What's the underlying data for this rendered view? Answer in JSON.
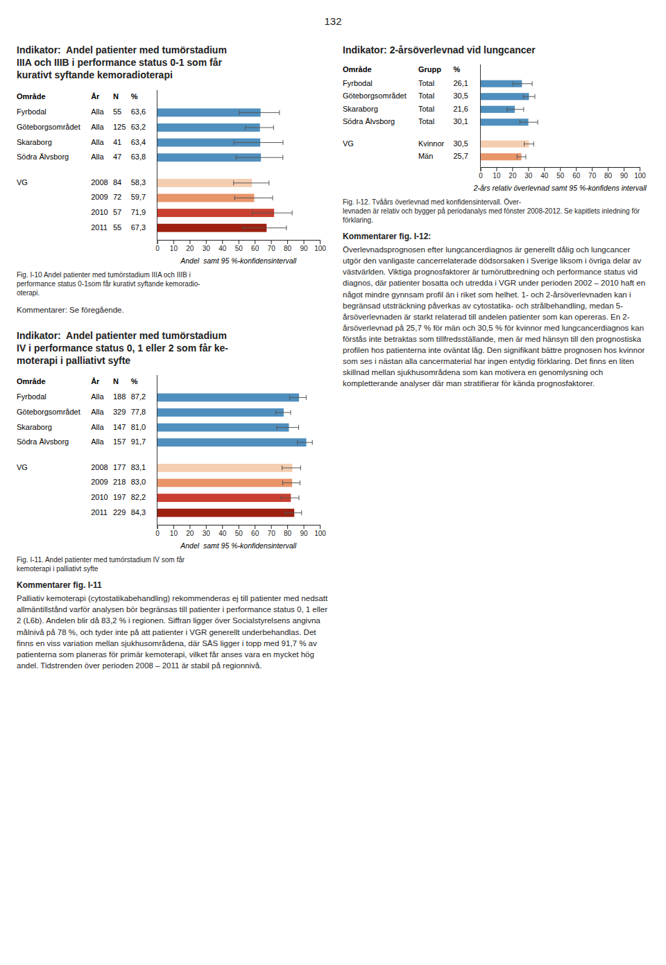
{
  "page_number": "132",
  "chart_data": [
    {
      "type": "bar",
      "orientation": "horizontal",
      "title": "Indikator:  Andel patienter med tumörstadium\nIIIA och IIIB i performance status 0-1 som får\nkurativt syftande kemoradioterapi",
      "table_headers": [
        "Område",
        "År",
        "N",
        "%"
      ],
      "categories": [
        "Fyrbodal",
        "Göteborgsområdet",
        "Skaraborg",
        "Södra Älvsborg",
        "VG",
        null,
        null,
        null
      ],
      "table_columns": [
        [
          "Alla",
          "Alla",
          "Alla",
          "Alla",
          "2008",
          "2009",
          "2010",
          "2011"
        ],
        [
          "55",
          "125",
          "41",
          "47",
          "84",
          "72",
          "57",
          "55"
        ]
      ],
      "values": [
        63.6,
        63.2,
        63.4,
        63.8,
        58.3,
        59.7,
        71.9,
        67.3
      ],
      "value_labels": [
        "63,6",
        "63,2",
        "63,4",
        "63,8",
        "58,3",
        "59,7",
        "71,9",
        "67,3"
      ],
      "ci_low": [
        50.5,
        54.2,
        47.2,
        48.5,
        47.0,
        47.7,
        58.5,
        53.0
      ],
      "ci_high": [
        75.2,
        71.6,
        77.4,
        77.3,
        68.8,
        71.0,
        83.0,
        79.5
      ],
      "colors": [
        "#4f8fbe",
        "#4f8fbe",
        "#4f8fbe",
        "#4f8fbe",
        "#f5cdb0",
        "#e8956a",
        "#c94030",
        "#9e2010"
      ],
      "x_label": "Andel  samt 95 %-konfidensintervall",
      "xlim": [
        0,
        100
      ],
      "xticks": [
        0,
        10,
        20,
        30,
        40,
        50,
        60,
        70,
        80,
        90,
        100
      ],
      "grid": false,
      "caption": "Fig. I-10 Andel patienter med tumörstadium IIIA och IIIB i\nperformance status 0-1som får kurativt syftande kemoradio-\noterapi.",
      "notes": [
        {
          "text": "Kommentarer: Se föregående."
        }
      ]
    },
    {
      "type": "bar",
      "orientation": "horizontal",
      "title": "Indikator:  Andel patienter med tumörstadium\nIV i performance status 0, 1 eller 2 som får ke-\nmoterapi i palliativt syfte",
      "table_headers": [
        "Område",
        "År",
        "N",
        "%"
      ],
      "categories": [
        "Fyrbodal",
        "Göteborgsområdet",
        "Skaraborg",
        "Södra Älvsborg",
        "VG",
        null,
        null,
        null
      ],
      "table_columns": [
        [
          "Alla",
          "Alla",
          "Alla",
          "Alla",
          "2008",
          "2009",
          "2010",
          "2011"
        ],
        [
          "188",
          "329",
          "147",
          "157",
          "177",
          "218",
          "197",
          "229"
        ]
      ],
      "values": [
        87.2,
        77.8,
        81.0,
        91.7,
        83.1,
        83.0,
        82.2,
        84.3
      ],
      "value_labels": [
        "87,2",
        "77,8",
        "81,0",
        "91,7",
        "83,1",
        "83,0",
        "82,2",
        "84,3"
      ],
      "ci_low": [
        81.5,
        72.9,
        73.6,
        86.2,
        76.8,
        77.2,
        76.2,
        78.8
      ],
      "ci_high": [
        91.6,
        82.1,
        87.0,
        95.4,
        88.2,
        87.8,
        87.2,
        88.8
      ],
      "colors": [
        "#4f8fbe",
        "#4f8fbe",
        "#4f8fbe",
        "#4f8fbe",
        "#f5cdb0",
        "#e8956a",
        "#c94030",
        "#9e2010"
      ],
      "x_label": "Andel  samt 95 %-konfidensintervall",
      "xlim": [
        0,
        100
      ],
      "xticks": [
        0,
        10,
        20,
        30,
        40,
        50,
        60,
        70,
        80,
        90,
        100
      ],
      "grid": false,
      "caption": "Fig. I-11. Andel patienter med tumörstadium IV som får\nkemoterapi i palliativt syfte",
      "notes": [
        {
          "title": "Kommentarer fig. I-11",
          "text": "Palliativ kemoterapi (cytostatikabehandling) rekommenderas ej till patienter med nedsatt allmäntillstånd varför analysen bör begränsas till patienter i performance status 0, 1 eller 2 (L6b). Andelen blir då 83,2 % i regionen. Siffran ligger över Socialstyrelsens angivna målnivå på 78 %, och tyder inte på att patienter i VGR generellt underbehandlas. Det finns en viss variation mellan sjukhusområdena, där SÄS ligger i topp med 91,7 % av patienterna som planeras för primär kemoterapi, vilket får anses vara en mycket hög andel. Tidstrenden över perioden 2008 – 2011 är stabil på regionnivå."
        }
      ]
    },
    {
      "type": "bar",
      "orientation": "horizontal",
      "title": "Indikator: 2-årsöverlevnad vid lungcancer",
      "table_headers": [
        "Område",
        "Grupp",
        "%"
      ],
      "categories": [
        "Fyrbodal",
        "Göteborgsområdet",
        "Skaraborg",
        "Södra Älvsborg",
        "VG",
        null
      ],
      "table_columns": [
        [
          "Total",
          "Total",
          "Total",
          "Total",
          "Kvinnor",
          "Män"
        ]
      ],
      "values": [
        26.1,
        30.5,
        21.6,
        30.1,
        30.5,
        25.7
      ],
      "value_labels": [
        "26,1",
        "30,5",
        "21,6",
        "30,1",
        "30,5",
        "25,7"
      ],
      "ci_low": [
        20.5,
        27.0,
        16.8,
        24.8,
        27.5,
        23.0
      ],
      "ci_high": [
        32.5,
        34.2,
        27.2,
        36.0,
        33.5,
        28.5
      ],
      "colors": [
        "#4f8fbe",
        "#4f8fbe",
        "#4f8fbe",
        "#4f8fbe",
        "#f5cdb0",
        "#e8956a"
      ],
      "x_label": "2-års relativ överlevnad samt 95 %-konfidens intervall",
      "xlim": [
        0,
        100
      ],
      "xticks": [
        0,
        10,
        20,
        30,
        40,
        50,
        60,
        70,
        80,
        90,
        100
      ],
      "grid": false,
      "caption": "Fig. I-12. Tvåårs överlevnad med konfidensintervall. Över-\nlevnaden är relativ och bygger på periodanalys med fönster 2008-2012. Se kapitlets inledning för förklaring.",
      "notes": [
        {
          "title": "Kommentarer fig. I-12:",
          "text": "Överlevnadsprognosen efter lungcancerdiagnos är generellt dålig och lungcancer utgör den vanligaste cancerrelaterade dödsorsaken i Sverige liksom i övriga delar av västvärlden. Viktiga prognosfaktorer är tumörutbredning och performance status vid diagnos, där patienter bosatta och utredda i VGR under perioden 2002 – 2010 haft en något mindre gynnsam profil än i riket som helhet. 1- och 2-årsöverlevnaden kan i begränsad utsträckning påverkas av cytostatika- och strålbehandling, medan 5-årsöverlevnaden är starkt relaterad till andelen patienter som kan opereras. En 2-årsöverlevnad på 25,7 % för män och 30,5 % för kvinnor med lungcancerdiagnos kan förstås inte betraktas som tillfredsställande, men är med hänsyn till den prognostiska profilen hos patienterna inte oväntat låg. Den signifikant bättre prognosen hos kvinnor som ses i nästan alla cancermaterial har ingen entydig förklaring. Det finns en liten skillnad mellan sjukhusområdena som kan motivera en genomlysning och kompletterande analyser där man stratifierar för kända prognosfaktorer."
        }
      ]
    }
  ]
}
